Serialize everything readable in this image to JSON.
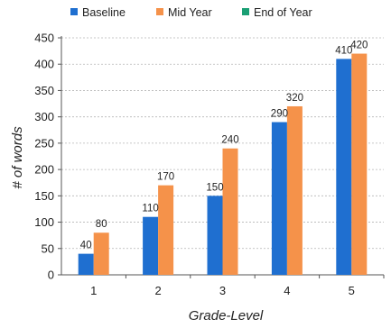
{
  "chart_data": {
    "type": "bar",
    "title": "",
    "xlabel": "Grade-Level",
    "ylabel": "# of words",
    "categories": [
      "1",
      "2",
      "3",
      "4",
      "5"
    ],
    "ylim": [
      0,
      450
    ],
    "yticks": [
      0,
      50,
      100,
      150,
      200,
      250,
      300,
      350,
      400,
      450
    ],
    "yticks_labels": [
      "0",
      "50",
      "100",
      "150",
      "200",
      "250",
      "300",
      "350",
      "400",
      "450"
    ],
    "grid": "horizontal dotted",
    "legend_position": "top",
    "series": [
      {
        "name": "Baseline",
        "color": "#1f6fd0",
        "values": [
          40,
          110,
          150,
          290,
          410
        ],
        "labels": [
          "40",
          "110",
          "150",
          "290",
          "410"
        ]
      },
      {
        "name": "Mid Year",
        "color": "#f5924a",
        "values": [
          80,
          170,
          240,
          320,
          420
        ],
        "labels": [
          "80",
          "170",
          "240",
          "320",
          "420"
        ]
      },
      {
        "name": "End of Year",
        "color": "#1a9f74",
        "values": [
          null,
          null,
          null,
          null,
          null
        ],
        "labels": []
      }
    ]
  }
}
